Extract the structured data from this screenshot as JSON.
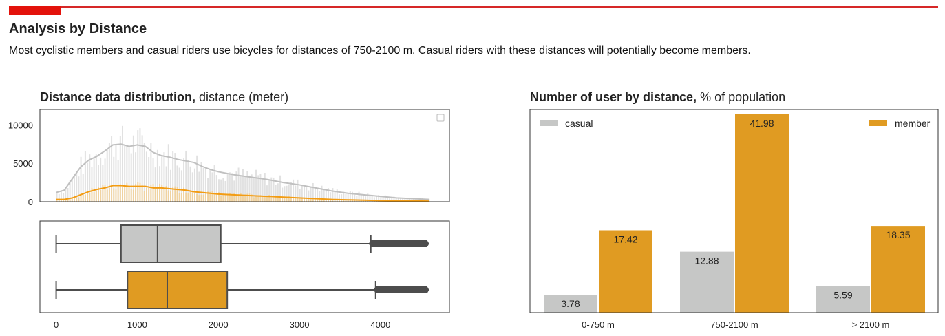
{
  "header": {
    "title": "Analysis by Distance",
    "subtitle": "Most cyclistic members and casual riders use bicycles for distances of 750-2100 m. Casual riders with these distances will potentially become members."
  },
  "colors": {
    "accent": "#e3120b",
    "casual": "#c6c7c6",
    "member": "#e09b22",
    "member_line": "#f39c12",
    "box_line": "#4d4d4d"
  },
  "chart_data": [
    {
      "type": "histogram",
      "title_bold": "Distance data distribution,",
      "title_rest": " distance (meter)",
      "xlim": [
        -200,
        4850
      ],
      "ylim": [
        0,
        12000
      ],
      "yticks": [
        0,
        5000,
        10000
      ],
      "ytick_labels": [
        "0",
        "5000",
        "10000"
      ],
      "kde": {
        "x": [
          0,
          100,
          200,
          300,
          400,
          500,
          600,
          700,
          800,
          900,
          1000,
          1100,
          1200,
          1300,
          1400,
          1500,
          1600,
          1700,
          1800,
          1900,
          2000,
          2200,
          2400,
          2600,
          2800,
          3000,
          3200,
          3400,
          3600,
          3800,
          4000,
          4200,
          4400,
          4600
        ],
        "casual": [
          1200,
          1500,
          3000,
          4500,
          5400,
          5900,
          6600,
          7400,
          7500,
          7200,
          7400,
          7200,
          6400,
          6000,
          5800,
          5500,
          5300,
          5100,
          4600,
          4200,
          3900,
          3500,
          3200,
          2900,
          2500,
          2200,
          1800,
          1400,
          1100,
          900,
          700,
          500,
          400,
          300
        ],
        "member": [
          300,
          300,
          500,
          900,
          1300,
          1600,
          1800,
          2100,
          2100,
          2000,
          2000,
          2000,
          1800,
          1800,
          1700,
          1600,
          1500,
          1300,
          1200,
          1100,
          1000,
          900,
          800,
          700,
          600,
          500,
          400,
          300,
          250,
          200,
          150,
          120,
          100,
          80
        ]
      }
    },
    {
      "type": "boxplot",
      "xticks": [
        0,
        1000,
        2000,
        3000,
        4000
      ],
      "xtick_labels": [
        "0",
        "1000",
        "2000",
        "3000",
        "4000"
      ],
      "boxes": [
        {
          "name": "casual",
          "whisker_low": 0,
          "q1": 800,
          "median": 1250,
          "q3": 2030,
          "whisker_high": 3880,
          "max": 4600
        },
        {
          "name": "member",
          "whisker_low": 0,
          "q1": 880,
          "median": 1370,
          "q3": 2110,
          "whisker_high": 3940,
          "max": 4600
        }
      ]
    },
    {
      "type": "bar",
      "title_bold": "Number of user by distance,",
      "title_rest": " % of population",
      "categories": [
        "0-750 m",
        "750-2100 m",
        "> 2100 m"
      ],
      "ylim": [
        0,
        43
      ],
      "legend": {
        "left": "casual",
        "right": "member"
      },
      "series": [
        {
          "name": "casual",
          "values": [
            3.78,
            12.88,
            5.59
          ]
        },
        {
          "name": "member",
          "values": [
            17.42,
            41.98,
            18.35
          ]
        }
      ]
    }
  ]
}
